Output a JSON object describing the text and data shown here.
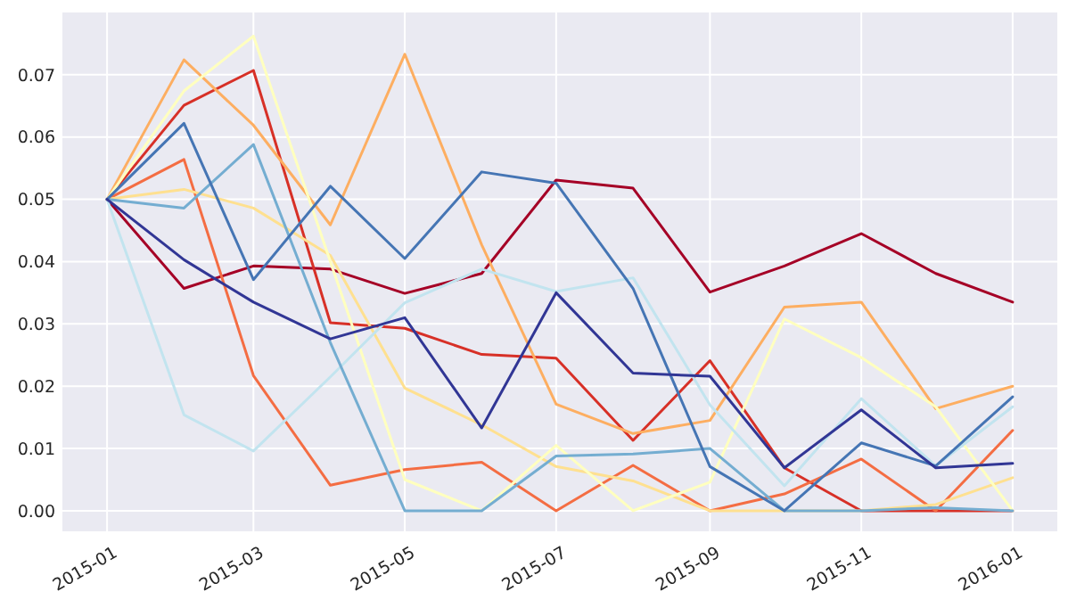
{
  "chart_data": {
    "type": "line",
    "x": [
      "2015-01",
      "2015-02",
      "2015-03",
      "2015-04",
      "2015-05",
      "2015-06",
      "2015-07",
      "2015-08",
      "2015-09",
      "2015-10",
      "2015-11",
      "2015-12",
      "2016-01"
    ],
    "series": [
      {
        "color": "#a50026",
        "values": [
          0.05,
          0.0357,
          0.0393,
          0.0388,
          0.0349,
          0.0381,
          0.0531,
          0.0518,
          0.0351,
          0.0393,
          0.0445,
          0.0381,
          0.0335
        ]
      },
      {
        "color": "#d73027",
        "values": [
          0.05,
          0.0651,
          0.0707,
          0.0302,
          0.0293,
          0.0251,
          0.0245,
          0.0113,
          0.0241,
          0.0069,
          0,
          0,
          0
        ]
      },
      {
        "color": "#f46d43",
        "values": [
          0.05,
          0.0564,
          0.0217,
          0.0041,
          0.0066,
          0.0078,
          0,
          0.0073,
          0,
          0.0027,
          0.0083,
          0,
          0.0129
        ]
      },
      {
        "color": "#fdae61",
        "values": [
          0.05,
          0.0724,
          0.0619,
          0.0459,
          0.0733,
          0.0427,
          0.0171,
          0.0124,
          0.0145,
          0.0327,
          0.0335,
          0.0164,
          0.02
        ]
      },
      {
        "color": "#fee090",
        "values": [
          0.05,
          0.0516,
          0.0486,
          0.041,
          0.0197,
          0.0138,
          0.0071,
          0.0048,
          0,
          0,
          0,
          0.001,
          0.0053
        ]
      },
      {
        "color": "#ffffbf",
        "values": [
          0.05,
          0.0674,
          0.0762,
          0.04,
          0.005,
          0,
          0.0105,
          0,
          0.0046,
          0.0308,
          0.0246,
          0.0167,
          0
        ]
      },
      {
        "color": "#c2e4ef",
        "values": [
          0.05,
          0.0154,
          0.0096,
          0.0215,
          0.0334,
          0.0388,
          0.0352,
          0.0374,
          0.017,
          0.004,
          0.018,
          0.0072,
          0.0167
        ]
      },
      {
        "color": "#74add1",
        "values": [
          0.05,
          0.0486,
          0.0588,
          0.027,
          0,
          0,
          0.0088,
          0.0091,
          0.01,
          0,
          0,
          0.0005,
          0
        ]
      },
      {
        "color": "#4575b4",
        "values": [
          0.05,
          0.0622,
          0.0371,
          0.0521,
          0.0405,
          0.0544,
          0.0526,
          0.0357,
          0.0071,
          0,
          0.0109,
          0.0072,
          0.0183
        ]
      },
      {
        "color": "#313695",
        "values": [
          0.05,
          0.0403,
          0.0335,
          0.0276,
          0.031,
          0.0133,
          0.035,
          0.0221,
          0.0216,
          0.0069,
          0.0162,
          0.0069,
          0.0076
        ]
      }
    ],
    "xlim": [
      "2014-12-14",
      "2016-01-19"
    ],
    "xticks": [
      {
        "value": "2015-01",
        "label": "2015-01"
      },
      {
        "value": "2015-03",
        "label": "2015-03"
      },
      {
        "value": "2015-05",
        "label": "2015-05"
      },
      {
        "value": "2015-07",
        "label": "2015-07"
      },
      {
        "value": "2015-09",
        "label": "2015-09"
      },
      {
        "value": "2015-11",
        "label": "2015-11"
      },
      {
        "value": "2016-01",
        "label": "2016-01"
      }
    ],
    "ylim": [
      -0.0033,
      0.08
    ],
    "yticks": [
      {
        "value": 0,
        "label": "0.00"
      },
      {
        "value": 0.01,
        "label": "0.01"
      },
      {
        "value": 0.02,
        "label": "0.02"
      },
      {
        "value": 0.03,
        "label": "0.03"
      },
      {
        "value": 0.04,
        "label": "0.04"
      },
      {
        "value": 0.05,
        "label": "0.05"
      },
      {
        "value": 0.06,
        "label": "0.06"
      },
      {
        "value": 0.07,
        "label": "0.07"
      }
    ],
    "grid": true,
    "marker": "none",
    "line_style": "solid"
  }
}
